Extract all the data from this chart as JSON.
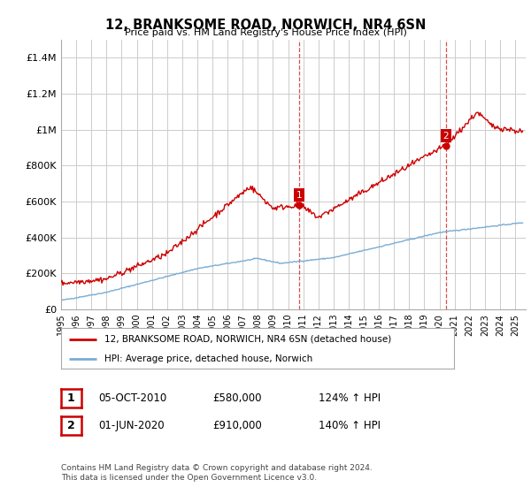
{
  "title": "12, BRANKSOME ROAD, NORWICH, NR4 6SN",
  "subtitle": "Price paid vs. HM Land Registry's House Price Index (HPI)",
  "ylabel_ticks": [
    "£0",
    "£200K",
    "£400K",
    "£600K",
    "£800K",
    "£1M",
    "£1.2M",
    "£1.4M"
  ],
  "ytick_values": [
    0,
    200000,
    400000,
    600000,
    800000,
    1000000,
    1200000,
    1400000
  ],
  "ylim": [
    0,
    1500000
  ],
  "xlim_start": 1995,
  "xlim_end": 2025.7,
  "line1_color": "#cc0000",
  "line2_color": "#7aadd4",
  "dashed_color": "#cc0000",
  "marker_color": "#cc0000",
  "transaction1_date": 2010.75,
  "transaction1_price": 580000,
  "transaction2_date": 2020.42,
  "transaction2_price": 910000,
  "legend_line1": "12, BRANKSOME ROAD, NORWICH, NR4 6SN (detached house)",
  "legend_line2": "HPI: Average price, detached house, Norwich",
  "annotation1_label": "1",
  "annotation1_date": "05-OCT-2010",
  "annotation1_price": "£580,000",
  "annotation1_hpi": "124% ↑ HPI",
  "annotation2_label": "2",
  "annotation2_date": "01-JUN-2020",
  "annotation2_price": "£910,000",
  "annotation2_hpi": "140% ↑ HPI",
  "footer": "Contains HM Land Registry data © Crown copyright and database right 2024.\nThis data is licensed under the Open Government Licence v3.0.",
  "background_color": "#ffffff",
  "grid_color": "#cccccc"
}
